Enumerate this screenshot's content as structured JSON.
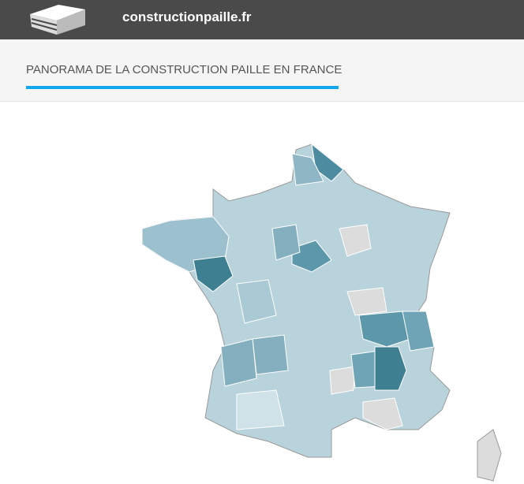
{
  "header": {
    "site_name": "constructionpaille.fr"
  },
  "panel": {
    "title": "PANORAMA DE LA CONSTRUCTION PAILLE EN FRANCE"
  }
}
